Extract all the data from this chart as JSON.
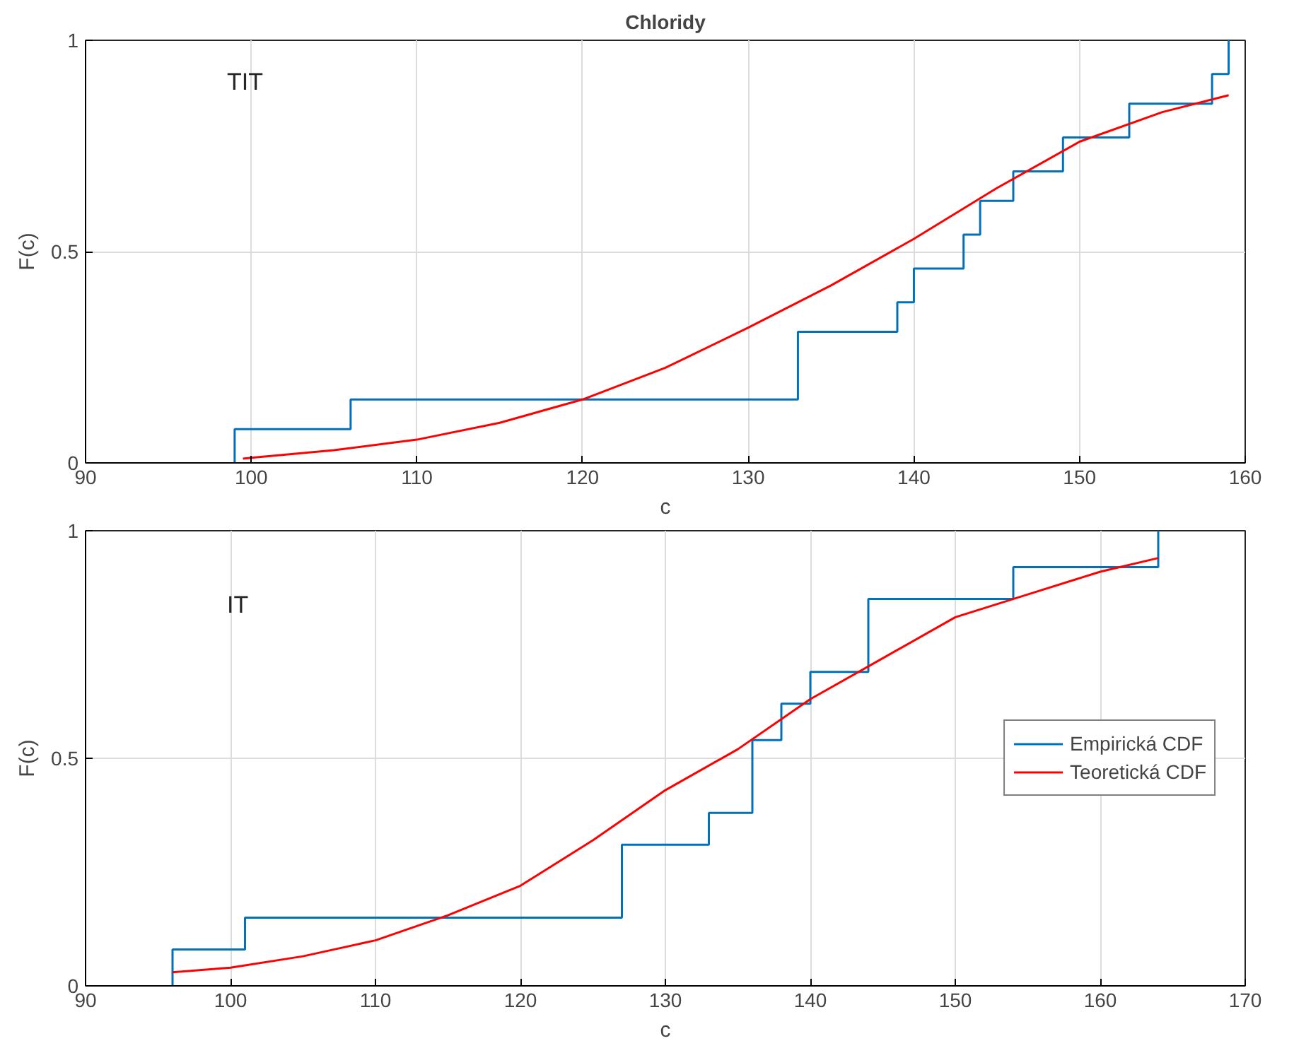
{
  "chart_data": [
    {
      "type": "line",
      "title": "Chloridy",
      "xlabel": "c",
      "ylabel": "F(c)",
      "annotations": [
        "TIT"
      ],
      "xlim": [
        90,
        160
      ],
      "ylim": [
        0,
        1
      ],
      "xticks": [
        90,
        100,
        110,
        120,
        130,
        140,
        150,
        160
      ],
      "yticks": [
        0,
        0.5,
        1
      ],
      "grid": true,
      "legend": false,
      "series": [
        {
          "type": "step",
          "color": "#0072bd",
          "x": [
            99,
            99,
            106,
            133,
            139,
            140,
            143,
            144,
            146,
            149,
            153,
            158,
            159
          ],
          "values": [
            0,
            0.08,
            0.15,
            0.31,
            0.38,
            0.46,
            0.54,
            0.62,
            0.69,
            0.77,
            0.85,
            0.92,
            1
          ]
        },
        {
          "color": "#ff0000",
          "x": [
            99.5,
            100,
            105,
            110,
            115,
            120,
            125,
            130,
            135,
            140,
            145,
            150,
            155,
            159
          ],
          "values": [
            0.01,
            0.012,
            0.03,
            0.055,
            0.095,
            0.15,
            0.225,
            0.32,
            0.42,
            0.53,
            0.65,
            0.76,
            0.83,
            0.87
          ]
        }
      ]
    },
    {
      "type": "line",
      "xlabel": "c",
      "ylabel": "F(c)",
      "annotations": [
        "IT"
      ],
      "xlim": [
        90,
        170
      ],
      "ylim": [
        0,
        1
      ],
      "xticks": [
        90,
        100,
        110,
        120,
        130,
        140,
        150,
        160,
        170
      ],
      "yticks": [
        0,
        0.5,
        1
      ],
      "grid": true,
      "legend": "right",
      "series": [
        {
          "name": "Empirická CDF",
          "type": "step",
          "color": "#0072bd",
          "x": [
            96,
            96,
            101,
            127,
            133,
            136,
            138,
            140,
            144,
            154,
            164
          ],
          "values": [
            0,
            0.08,
            0.15,
            0.31,
            0.38,
            0.54,
            0.62,
            0.69,
            0.85,
            0.92,
            1
          ]
        },
        {
          "name": "Teoretická CDF",
          "color": "#ff0000",
          "x": [
            96,
            100,
            105,
            110,
            115,
            120,
            125,
            130,
            135,
            140,
            145,
            150,
            155,
            160,
            164
          ],
          "values": [
            0.03,
            0.04,
            0.065,
            0.1,
            0.155,
            0.22,
            0.32,
            0.43,
            0.52,
            0.63,
            0.72,
            0.81,
            0.86,
            0.91,
            0.94
          ]
        }
      ]
    }
  ]
}
